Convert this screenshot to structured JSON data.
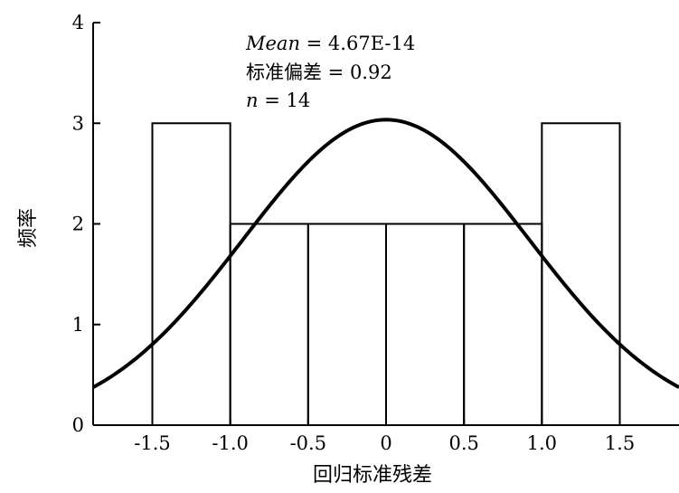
{
  "chart_data": {
    "type": "bar",
    "bins": [
      {
        "x0": -1.5,
        "x1": -1.0,
        "count": 3
      },
      {
        "x0": -1.0,
        "x1": -0.5,
        "count": 2
      },
      {
        "x0": -0.5,
        "x1": 0.0,
        "count": 2
      },
      {
        "x0": 0.0,
        "x1": 0.5,
        "count": 2
      },
      {
        "x0": 0.5,
        "x1": 1.0,
        "count": 2
      },
      {
        "x0": 1.0,
        "x1": 1.5,
        "count": 3
      }
    ],
    "normal_curve": {
      "mean": 0,
      "std": 0.92,
      "n": 14,
      "bin_width": 0.5
    },
    "xlabel": "回归标准残差",
    "ylabel": "频率",
    "x_ticks": [
      -1.5,
      -1.0,
      -0.5,
      0,
      0.5,
      1.0,
      1.5
    ],
    "x_tick_labels": [
      "-1.5",
      "-1.0",
      "-0.5",
      "0",
      "0.5",
      "1.0",
      "1.5"
    ],
    "y_ticks": [
      0,
      1,
      2,
      3,
      4
    ],
    "y_tick_labels": [
      "0",
      "1",
      "2",
      "3",
      "4"
    ],
    "xlim": [
      -1.88,
      1.88
    ],
    "ylim": [
      0,
      4
    ],
    "stats": {
      "mean_label": "Mean",
      "mean_value": " = 4.67E-14",
      "std_line": "标准偏差 = 0.92",
      "n_label": "n",
      "n_value": " = 14"
    }
  }
}
